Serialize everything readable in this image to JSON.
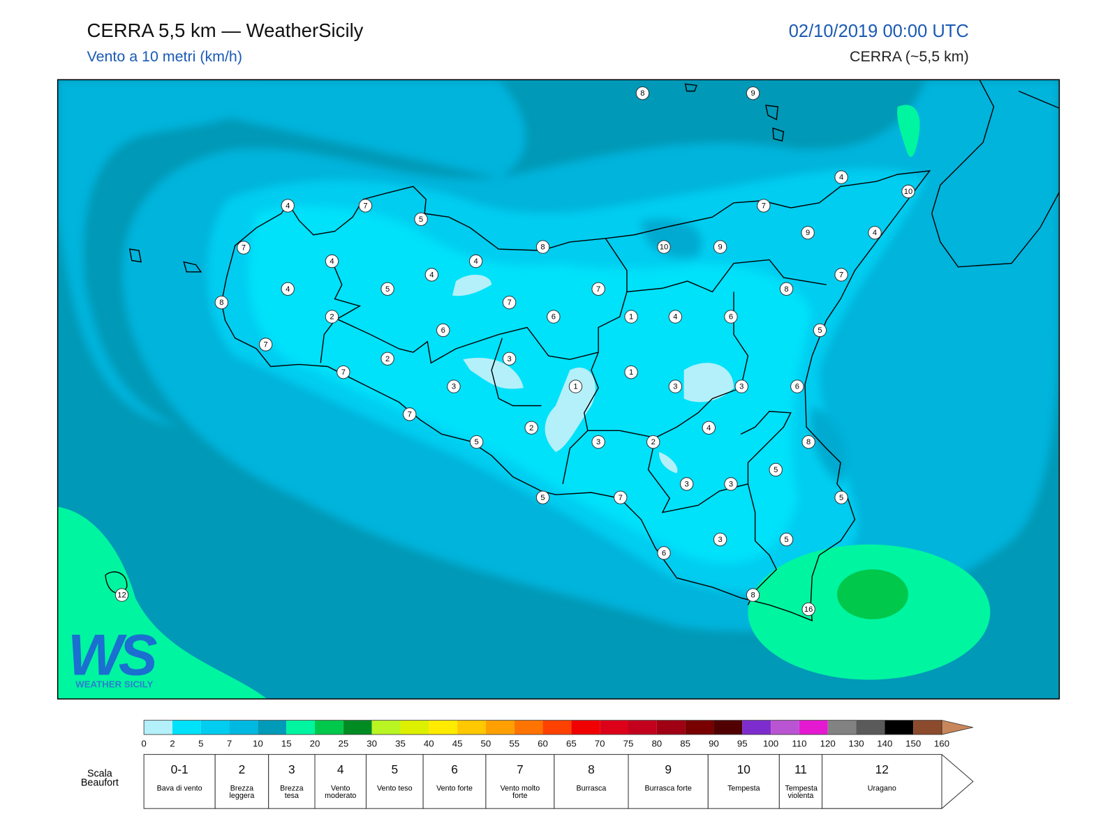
{
  "header": {
    "title": "CERRA 5,5 km — WeatherSicily",
    "subtitle": "Vento a 10 metri (km/h)",
    "datetime": "02/10/2019 00:00 UTC",
    "model": "CERRA (~5,5 km)"
  },
  "map": {
    "stations": [
      8,
      9,
      4,
      10,
      4,
      7,
      5,
      7,
      9,
      4,
      7,
      8,
      10,
      9,
      4,
      4,
      4,
      7,
      4,
      5,
      7,
      8,
      8,
      7,
      6,
      1,
      4,
      6,
      2,
      6,
      5,
      7,
      2,
      3,
      7,
      1,
      3,
      1,
      3,
      3,
      6,
      7,
      2,
      4,
      5,
      3,
      2,
      8,
      5,
      3,
      3,
      5,
      7,
      5,
      3,
      5,
      6,
      8,
      16,
      12
    ]
  },
  "logo": {
    "mark": "WS",
    "name": "WEATHER SICILY"
  },
  "colorbar": {
    "ticks": [
      0,
      2,
      5,
      7,
      10,
      15,
      20,
      25,
      30,
      35,
      40,
      45,
      50,
      55,
      60,
      65,
      70,
      75,
      80,
      85,
      90,
      95,
      100,
      110,
      120,
      130,
      140,
      150,
      160
    ],
    "colors": [
      "#b4f0fa",
      "#00e1fa",
      "#00cdf0",
      "#00b9e1",
      "#009bb9",
      "#00f5a0",
      "#00c84b",
      "#008c23",
      "#b9f523",
      "#dcf000",
      "#ffeb00",
      "#ffc800",
      "#ffa000",
      "#ff7300",
      "#ff4100",
      "#f00000",
      "#dc0019",
      "#c3001e",
      "#a00014",
      "#780000",
      "#500000",
      "#7d2dcd",
      "#b955d2",
      "#e619d2",
      "#828282",
      "#5a5a5a",
      "#000000",
      "#8c4b2d",
      "#c8875a"
    ]
  },
  "beaufort": {
    "label": "Scala Beaufort",
    "classes": [
      {
        "force": "0-1",
        "description": "Bava di vento"
      },
      {
        "force": "2",
        "description": "Brezza leggera"
      },
      {
        "force": "3",
        "description": "Brezza tesa"
      },
      {
        "force": "4",
        "description": "Vento moderato"
      },
      {
        "force": "5",
        "description": "Vento teso"
      },
      {
        "force": "6",
        "description": "Vento forte"
      },
      {
        "force": "7",
        "description": "Vento molto forte"
      },
      {
        "force": "8",
        "description": "Burrasca"
      },
      {
        "force": "9",
        "description": "Burrasca forte"
      },
      {
        "force": "10",
        "description": "Tempesta"
      },
      {
        "force": "11",
        "description": "Tempesta violenta"
      },
      {
        "force": "12",
        "description": "Uragano"
      }
    ]
  }
}
